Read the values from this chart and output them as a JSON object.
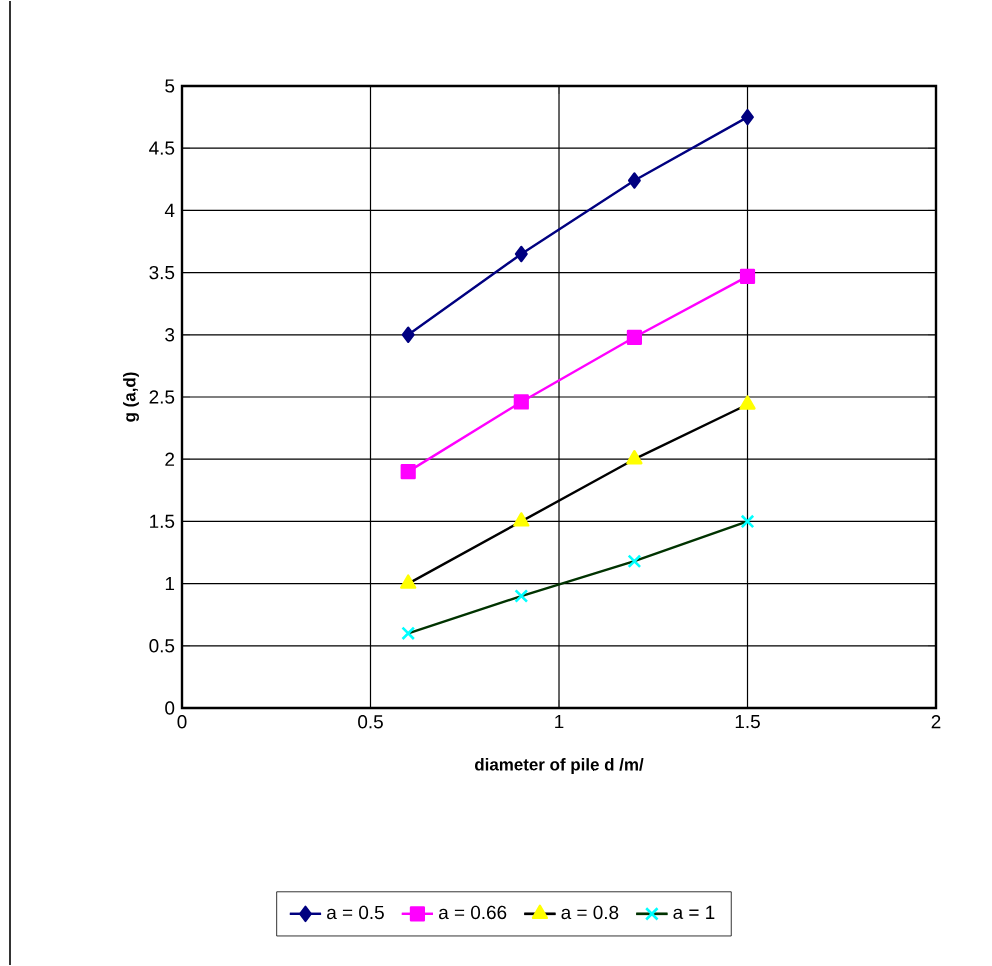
{
  "chart_data": {
    "type": "line",
    "xlabel": "diameter of pile    d /m/",
    "ylabel": "g (a,d)",
    "xlim": [
      0,
      2
    ],
    "xticks": [
      0,
      0.5,
      1,
      1.5,
      2
    ],
    "ylim": [
      0,
      5
    ],
    "yticks": [
      0,
      0.5,
      1,
      1.5,
      2,
      2.5,
      3,
      3.5,
      4,
      4.5,
      5
    ],
    "grid": true,
    "legend": "bottom",
    "line_style": "solid",
    "series": [
      {
        "name": "a = 0.5",
        "color": "#000080",
        "marker": "diamond",
        "x": [
          0.6,
          0.9,
          1.2,
          1.5
        ],
        "values": [
          3.0,
          3.65,
          4.24,
          4.75
        ]
      },
      {
        "name": "a = 0.66",
        "color": "#ff00ff",
        "marker": "square",
        "x": [
          0.6,
          0.9,
          1.2,
          1.5
        ],
        "values": [
          1.9,
          2.46,
          2.98,
          3.47
        ]
      },
      {
        "name": "a = 0.8",
        "color": "#000000",
        "colors": [
          "#ffff00",
          "#ffff00",
          "#ffff00",
          "#ffff00"
        ],
        "marker": "triangle",
        "x": [
          0.6,
          0.9,
          1.2,
          1.5
        ],
        "values": [
          1.0,
          1.5,
          2.0,
          2.44
        ]
      },
      {
        "name": "a = 1",
        "color": "#003300",
        "colors": [
          "#00ffff",
          "#00ffff",
          "#00ffff",
          "#00ffff"
        ],
        "marker": "cross",
        "x": [
          0.6,
          0.9,
          1.2,
          1.5
        ],
        "values": [
          0.6,
          0.9,
          1.18,
          1.5
        ]
      }
    ]
  }
}
